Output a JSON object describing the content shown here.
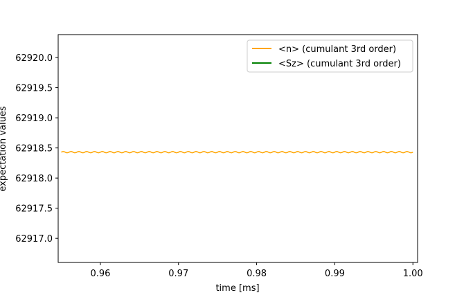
{
  "chart_data": {
    "type": "line",
    "title": "",
    "xlabel": "time [ms]",
    "ylabel": "expectation values",
    "xlim": [
      0.9546,
      1.0006
    ],
    "ylim": [
      62916.6,
      62920.38
    ],
    "x_ticks": [
      0.96,
      0.97,
      0.98,
      0.99,
      1.0
    ],
    "x_tick_labels": [
      "0.96",
      "0.97",
      "0.98",
      "0.99",
      "1.00"
    ],
    "y_ticks": [
      62917.0,
      62917.5,
      62918.0,
      62918.5,
      62919.0,
      62919.5,
      62920.0
    ],
    "y_tick_labels": [
      "62917.0",
      "62917.5",
      "62918.0",
      "62918.5",
      "62919.0",
      "62919.5",
      "62920.0"
    ],
    "grid": false,
    "legend_position": "top-right",
    "series": [
      {
        "name": "<n> (cumulant 3rd order)",
        "color": "#ffa500",
        "x_start": 0.955,
        "x_end": 1.0,
        "mean": 62918.43,
        "oscillation_amplitude": 0.01,
        "oscillation_period": 0.001
      },
      {
        "name": "<Sz> (cumulant 3rd order)",
        "color": "#008000"
      }
    ]
  }
}
